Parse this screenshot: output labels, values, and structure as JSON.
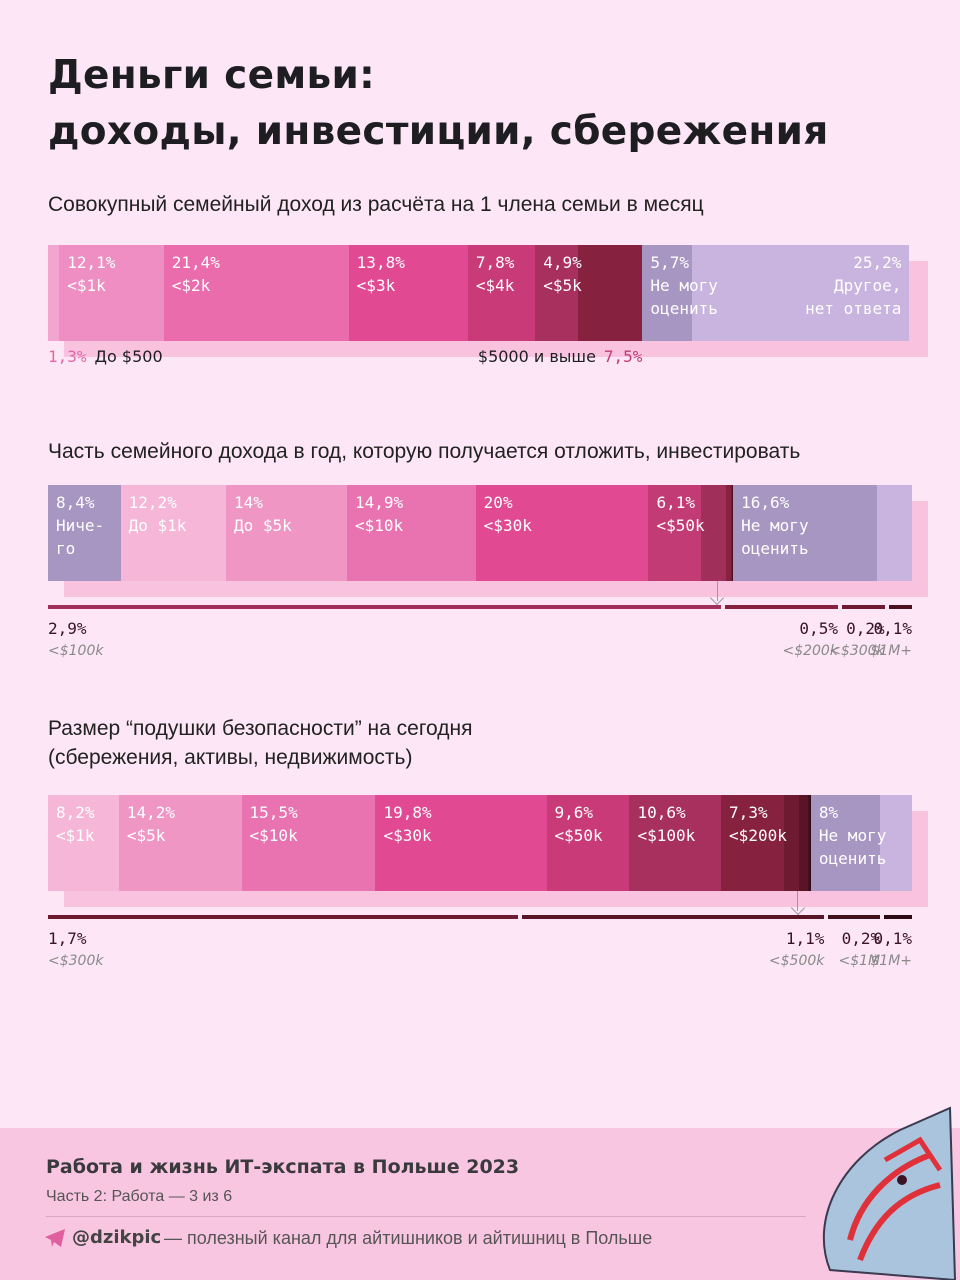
{
  "header": {
    "title": "Деньги семьи:\nдоходы, инвестиции, сбережения"
  },
  "chart_data": [
    {
      "type": "stacked-bar",
      "title": "Совокупный семейный доход из расчёта на 1 члена семьи в месяц",
      "categories": [
        "До $500",
        "<$1k",
        "<$2k",
        "<$3k",
        "<$4k",
        "<$5k",
        "$5000 и выше",
        "Не могу\nоценить",
        "Другое,\nнет ответа"
      ],
      "values": [
        1.3,
        12.1,
        21.4,
        13.8,
        7.8,
        4.9,
        7.5,
        5.7,
        25.2
      ],
      "value_labels": [
        "1,3%",
        "12,1%",
        "21,4%",
        "13,8%",
        "7,8%",
        "4,9%",
        "7,5%",
        "5,7%",
        "25,2%"
      ],
      "colors": [
        "#f2a6cf",
        "#ee8ec2",
        "#ea6cad",
        "#e14993",
        "#c93a78",
        "#a8305e",
        "#862240",
        "#a796c2",
        "#c9b4df"
      ]
    },
    {
      "type": "stacked-bar-breakout",
      "title": "Часть семейного дохода в год, которую получается отложить, инвестировать",
      "categories": [
        "Ниче-\nго",
        "До $1k",
        "До $5k",
        "<$10k",
        "<$30k",
        "<$50k",
        "<$100k",
        "<$200k",
        "<$300k",
        "$1M+",
        "Не могу\nоценить",
        null
      ],
      "values": [
        8.4,
        12.2,
        14,
        14.9,
        20,
        6.1,
        2.9,
        0.5,
        0.2,
        0.1,
        16.6,
        4.1
      ],
      "value_labels": [
        "8,4%",
        "12,2%",
        "14%",
        "14,9%",
        "20%",
        "6,1%",
        "2,9%",
        "0,5%",
        "0,2%",
        "0,1%",
        "16,6%",
        null
      ],
      "colors": [
        "#a796c2",
        "#f5b6d7",
        "#ef96c5",
        "#e873b0",
        "#e14993",
        "#c23b75",
        "#a0305a",
        "#862240",
        "#6e1a30",
        "#4e1020",
        "#a796c2",
        "#c9b4df"
      ]
    },
    {
      "type": "stacked-bar-breakout",
      "title": "Размер “подушки безопасности” на сегодня\n(сбережения, активы, недвижимость)",
      "categories": [
        "<$1k",
        "<$5k",
        "<$10k",
        "<$30k",
        "<$50k",
        "<$100k",
        "<$200k",
        "<$300k",
        "<$500k",
        "<$1M",
        "$1M+",
        "Не могу\nоценить",
        null
      ],
      "values": [
        8.2,
        14.2,
        15.5,
        19.8,
        9.6,
        10.6,
        7.3,
        1.7,
        1.1,
        0.2,
        0.1,
        8,
        3.7
      ],
      "value_labels": [
        "8,2%",
        "14,2%",
        "15,5%",
        "19,8%",
        "9,6%",
        "10,6%",
        "7,3%",
        "1,7%",
        "1,1%",
        "0,2%",
        "0,1%",
        "8%",
        null
      ],
      "colors": [
        "#f5b6d7",
        "#ef96c5",
        "#e873b0",
        "#e14993",
        "#c93a78",
        "#a8305e",
        "#862240",
        "#6e1a30",
        "#5a1428",
        "#42101c",
        "#2e0a14",
        "#a796c2",
        "#c9b4df"
      ]
    }
  ],
  "footer": {
    "title": "Работа и жизнь ИТ-экспата в Польше 2023",
    "part": "Часть 2: Работа — 3 из 6",
    "channel": "@dzikpic",
    "channel_text": "— полезный канал для айтишников и айтишниц в Польше"
  }
}
